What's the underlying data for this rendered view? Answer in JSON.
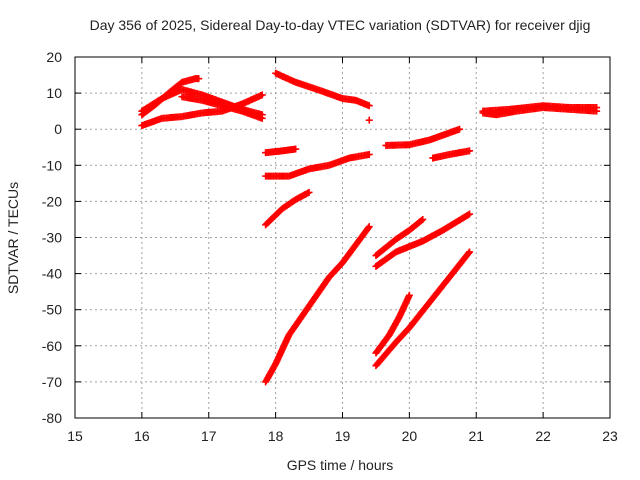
{
  "chart_data": {
    "type": "scatter",
    "title": "Day 356 of 2025, Sidereal Day-to-day VTEC variation (SDTVAR) for receiver djig",
    "xlabel": "GPS time / hours",
    "ylabel": "SDTVAR / TECUs",
    "xlim": [
      15,
      23
    ],
    "ylim": [
      -80,
      20
    ],
    "xticks": [
      15,
      16,
      17,
      18,
      19,
      20,
      21,
      22,
      23
    ],
    "xtick_labels": [
      "15",
      "16",
      "17",
      "18",
      "19",
      "20",
      "21",
      "22",
      "23"
    ],
    "yticks": [
      -80,
      -70,
      -60,
      -50,
      -40,
      -30,
      -20,
      -10,
      0,
      10,
      20
    ],
    "ytick_labels": [
      "-80",
      "-70",
      "-60",
      "-50",
      "-40",
      "-30",
      "-20",
      "-10",
      "0",
      "10",
      "20"
    ],
    "grid": true,
    "legend": "none",
    "marker": "+",
    "marker_color": "#ff0000",
    "series": [
      {
        "points": [
          [
            16.0,
            4.0
          ],
          [
            16.2,
            6.8
          ],
          [
            16.4,
            10.0
          ],
          [
            16.6,
            13.0
          ],
          [
            16.8,
            14.0
          ],
          [
            16.85,
            14.0
          ]
        ]
      },
      {
        "points": [
          [
            16.0,
            5.0
          ],
          [
            16.3,
            8.5
          ],
          [
            16.6,
            11.0
          ],
          [
            16.9,
            9.5
          ],
          [
            17.2,
            7.5
          ],
          [
            17.5,
            5.5
          ],
          [
            17.8,
            4.0
          ]
        ]
      },
      {
        "points": [
          [
            16.6,
            9.0
          ],
          [
            16.9,
            8.0
          ],
          [
            17.2,
            6.5
          ],
          [
            17.5,
            5.0
          ],
          [
            17.8,
            3.0
          ]
        ]
      },
      {
        "points": [
          [
            16.0,
            1.0
          ],
          [
            16.3,
            3.0
          ],
          [
            16.6,
            3.5
          ],
          [
            16.9,
            4.5
          ],
          [
            17.2,
            5.0
          ],
          [
            17.5,
            7.0
          ],
          [
            17.8,
            9.5
          ]
        ]
      },
      {
        "points": [
          [
            18.0,
            15.5
          ],
          [
            18.3,
            13.0
          ],
          [
            18.7,
            10.5
          ],
          [
            19.0,
            8.5
          ],
          [
            19.2,
            8.0
          ],
          [
            19.4,
            6.5
          ]
        ]
      },
      {
        "points": [
          [
            19.4,
            2.5
          ]
        ]
      },
      {
        "points": [
          [
            17.85,
            -6.5
          ],
          [
            18.1,
            -6.0
          ],
          [
            18.3,
            -5.5
          ]
        ]
      },
      {
        "points": [
          [
            17.85,
            -13.0
          ],
          [
            18.2,
            -13.0
          ],
          [
            18.5,
            -11.0
          ],
          [
            18.8,
            -10.0
          ],
          [
            19.1,
            -8.0
          ],
          [
            19.4,
            -7.0
          ]
        ]
      },
      {
        "points": [
          [
            17.85,
            -26.5
          ],
          [
            18.1,
            -22.0
          ],
          [
            18.3,
            -19.5
          ],
          [
            18.5,
            -17.5
          ]
        ]
      },
      {
        "points": [
          [
            17.85,
            -70.0
          ],
          [
            18.0,
            -65.0
          ],
          [
            18.2,
            -57.0
          ],
          [
            18.5,
            -49.0
          ],
          [
            18.8,
            -41.0
          ],
          [
            19.0,
            -37.0
          ],
          [
            19.2,
            -32.0
          ],
          [
            19.4,
            -27.0
          ]
        ]
      },
      {
        "points": [
          [
            19.65,
            -4.5
          ],
          [
            20.0,
            -4.3
          ],
          [
            20.3,
            -3.0
          ],
          [
            20.6,
            -1.0
          ],
          [
            20.75,
            0.0
          ]
        ]
      },
      {
        "points": [
          [
            20.35,
            -8.0
          ],
          [
            20.6,
            -7.0
          ],
          [
            20.9,
            -6.0
          ]
        ]
      },
      {
        "points": [
          [
            19.5,
            -35.0
          ],
          [
            19.8,
            -30.5
          ],
          [
            20.0,
            -28.0
          ],
          [
            20.2,
            -25.0
          ]
        ]
      },
      {
        "points": [
          [
            19.5,
            -38.0
          ],
          [
            19.8,
            -34.0
          ],
          [
            20.2,
            -31.0
          ],
          [
            20.5,
            -28.0
          ],
          [
            20.9,
            -23.5
          ]
        ]
      },
      {
        "points": [
          [
            19.5,
            -62.0
          ],
          [
            19.7,
            -57.0
          ],
          [
            19.85,
            -52.0
          ],
          [
            20.0,
            -46.0
          ]
        ]
      },
      {
        "points": [
          [
            19.5,
            -65.5
          ],
          [
            19.8,
            -59.0
          ],
          [
            20.0,
            -55.0
          ],
          [
            20.3,
            -48.0
          ],
          [
            20.6,
            -41.0
          ],
          [
            20.9,
            -34.0
          ]
        ]
      },
      {
        "points": [
          [
            21.1,
            4.5
          ],
          [
            21.3,
            4.0
          ],
          [
            21.6,
            5.0
          ],
          [
            22.0,
            6.0
          ],
          [
            22.4,
            5.5
          ],
          [
            22.8,
            5.0
          ]
        ]
      },
      {
        "points": [
          [
            21.1,
            5.0
          ],
          [
            21.5,
            5.5
          ],
          [
            22.0,
            6.5
          ],
          [
            22.4,
            6.0
          ],
          [
            22.8,
            6.0
          ]
        ]
      }
    ]
  }
}
